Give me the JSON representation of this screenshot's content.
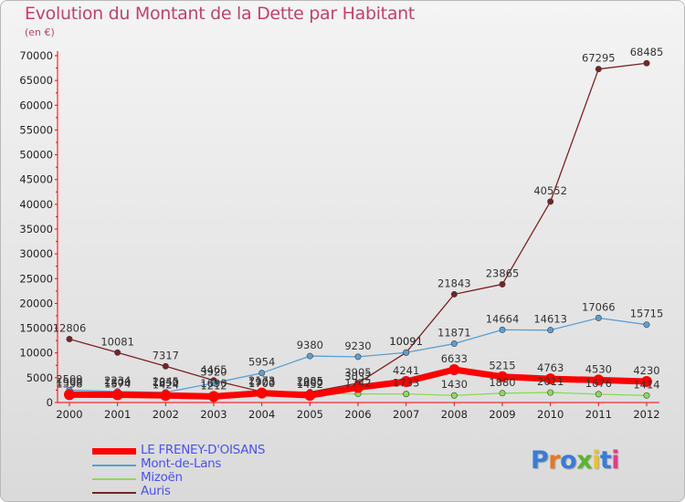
{
  "title": "Evolution du Montant de la Dette par Habitant",
  "unit_label": "(en €)",
  "logo": {
    "text": "Proxiti",
    "letter_colors": [
      "#3a7bd5",
      "#e87722",
      "#3a7bd5",
      "#5ab52f",
      "#e8c32a",
      "#3a7bd5",
      "#e03b8b"
    ]
  },
  "chart_data": {
    "type": "line",
    "x": [
      "2000",
      "2001",
      "2002",
      "2003",
      "2004",
      "2005",
      "2006",
      "2007",
      "2008",
      "2009",
      "2010",
      "2011",
      "2012"
    ],
    "ylim": [
      0,
      70000
    ],
    "yticks": [
      "0",
      "5000",
      "10000",
      "15000",
      "20000",
      "25000",
      "30000",
      "35000",
      "40000",
      "45000",
      "50000",
      "55000",
      "60000",
      "65000",
      "70000"
    ],
    "grid": false,
    "legend_position": "bottom-left",
    "series": [
      {
        "name": "LE FRENEY-D'OISANS",
        "color": "#ff0000",
        "values": [
          1598,
          1574,
          1424,
          1212,
          1903,
          1452,
          3032,
          4241,
          6633,
          5215,
          4763,
          4530,
          4230
        ],
        "value_labels": [
          "1598",
          "1574",
          "1424",
          "1212",
          "1903",
          "1452",
          "3032",
          "4241",
          "6633",
          "5215",
          "4763",
          "4530",
          "4230"
        ]
      },
      {
        "name": "Mont-de-Lans",
        "color": "#5a9fd4",
        "values": [
          2509,
          2234,
          2045,
          3920,
          5954,
          9380,
          9230,
          10091,
          11871,
          14664,
          14613,
          17066,
          15715
        ],
        "value_labels": [
          "2509",
          "2234",
          "2045",
          "3920",
          "5954",
          "9380",
          "9230",
          "10091",
          "11871",
          "14664",
          "14613",
          "17066",
          "15715"
        ]
      },
      {
        "name": "Mizoën",
        "color": "#88dd55",
        "values": [
          1900,
          1800,
          1850,
          1690,
          1700,
          1800,
          1742,
          1733,
          1430,
          1880,
          2011,
          1676,
          1414
        ],
        "value_labels": [
          "1900",
          "1800",
          "1850",
          "1690",
          "1700",
          "1800",
          "1742",
          "1733",
          "1430",
          "1880",
          "2011",
          "1676",
          "1414"
        ]
      },
      {
        "name": "Auris",
        "color": "#7b2222",
        "values": [
          12806,
          10081,
          7317,
          4465,
          2173,
          2085,
          3905,
          10091,
          21843,
          23865,
          40552,
          67295,
          68485
        ],
        "value_labels": [
          "12806",
          "10081",
          "7317",
          "4465",
          "2173",
          "2085",
          "3905",
          "10091",
          "21843",
          "23865",
          "40552",
          "67295",
          "68485"
        ]
      }
    ]
  },
  "legend_colors": {
    "LE FRENEY-D'OISANS": "#4a52e8",
    "Mont-de-Lans": "#4a52e8",
    "Mizoën": "#4a52e8",
    "Auris": "#4a52e8"
  }
}
